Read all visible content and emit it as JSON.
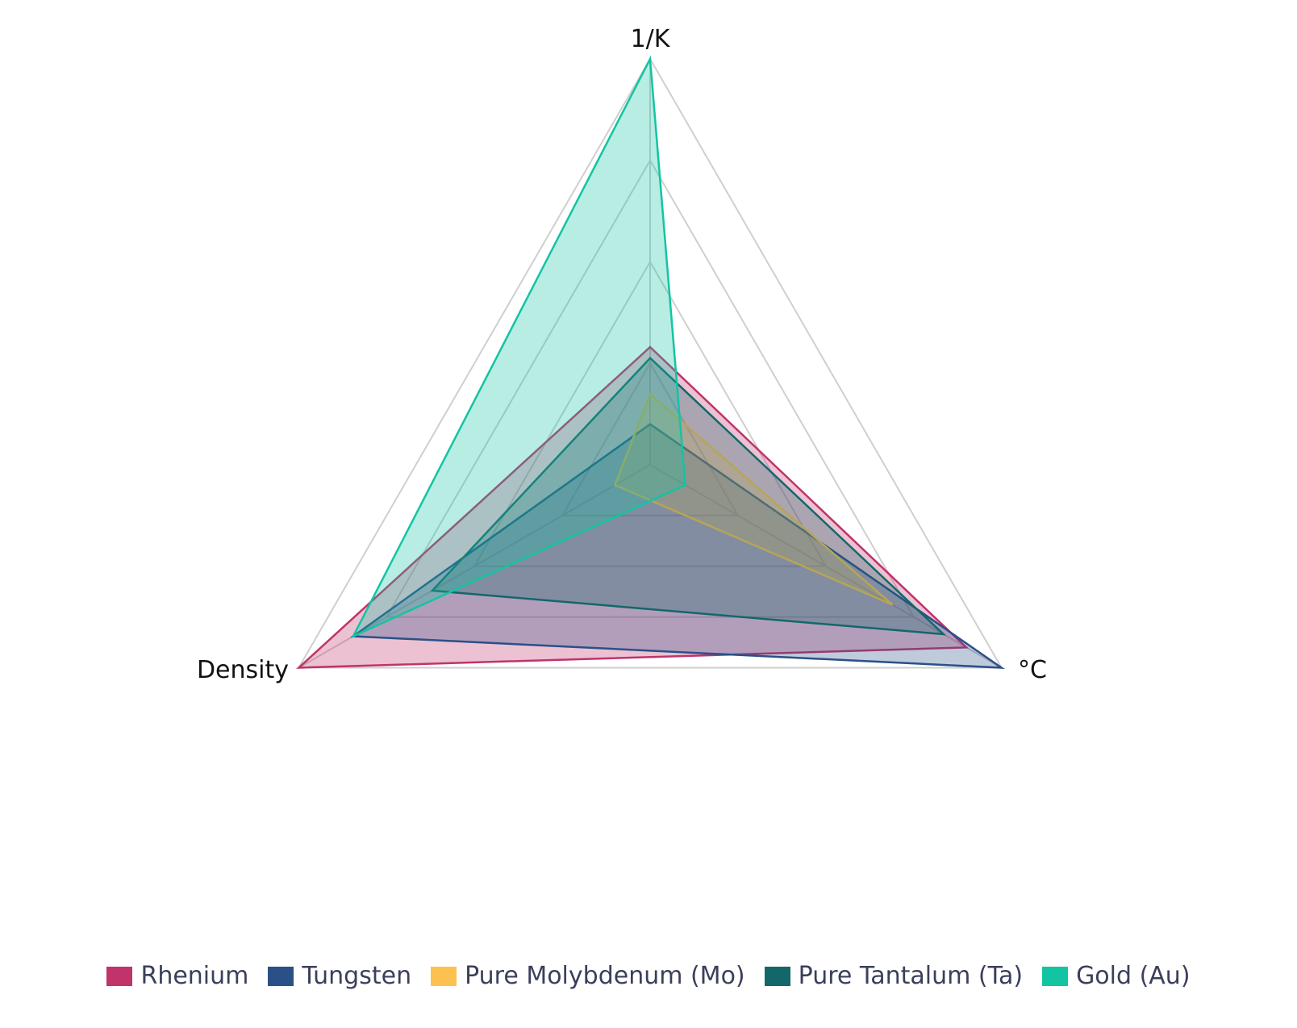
{
  "chart_data": {
    "type": "radar",
    "axes": [
      "1/K",
      "°C",
      "Density"
    ],
    "range": [
      0,
      1
    ],
    "grid": true,
    "grid_rings": 4,
    "legend_position": "bottom",
    "series": [
      {
        "name": "Rhenium",
        "color": "#c0336b",
        "values": [
          0.29,
          0.9,
          1.0
        ]
      },
      {
        "name": "Tungsten",
        "color": "#2a5088",
        "values": [
          0.1,
          1.0,
          0.845
        ]
      },
      {
        "name": "Pure Molybdenum (Mo)",
        "color": "#fdc150",
        "values": [
          0.174,
          0.69,
          0.1
        ]
      },
      {
        "name": "Pure Tantalum (Ta)",
        "color": "#13676a",
        "values": [
          0.263,
          0.835,
          0.62
        ]
      },
      {
        "name": "Gold (Au)",
        "color": "#13c4a3",
        "values": [
          1.0,
          0.1,
          0.845
        ]
      }
    ]
  }
}
